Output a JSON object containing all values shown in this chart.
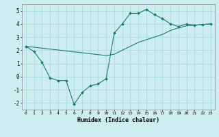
{
  "xlabel": "Humidex (Indice chaleur)",
  "bg_color": "#cceef0",
  "grid_color": "#aadddd",
  "line_color": "#1a7a6e",
  "line1_x": [
    0,
    1,
    2,
    3,
    4,
    5,
    6,
    7,
    8,
    9,
    10,
    11,
    12,
    13,
    14,
    15,
    16,
    17,
    18,
    19,
    20,
    21,
    22,
    23
  ],
  "line1_y": [
    2.3,
    1.9,
    1.1,
    -0.1,
    -0.3,
    -0.3,
    -2.1,
    -1.2,
    -0.7,
    -0.55,
    -0.15,
    3.3,
    4.0,
    4.8,
    4.8,
    5.1,
    4.7,
    4.4,
    4.0,
    3.8,
    4.0,
    3.9,
    3.95,
    4.0
  ],
  "line2_x": [
    0,
    10,
    11,
    12,
    13,
    14,
    15,
    16,
    17,
    18,
    19,
    20,
    21,
    22,
    23
  ],
  "line2_y": [
    2.3,
    1.6,
    1.7,
    2.0,
    2.3,
    2.6,
    2.8,
    3.0,
    3.2,
    3.5,
    3.7,
    3.85,
    3.9,
    3.95,
    4.0
  ],
  "ylim": [
    -2.5,
    5.5
  ],
  "xlim": [
    -0.5,
    23.5
  ],
  "yticks": [
    -2,
    -1,
    0,
    1,
    2,
    3,
    4,
    5
  ],
  "xticks": [
    0,
    1,
    2,
    3,
    4,
    5,
    6,
    7,
    8,
    9,
    10,
    11,
    12,
    13,
    14,
    15,
    16,
    17,
    18,
    19,
    20,
    21,
    22,
    23
  ]
}
